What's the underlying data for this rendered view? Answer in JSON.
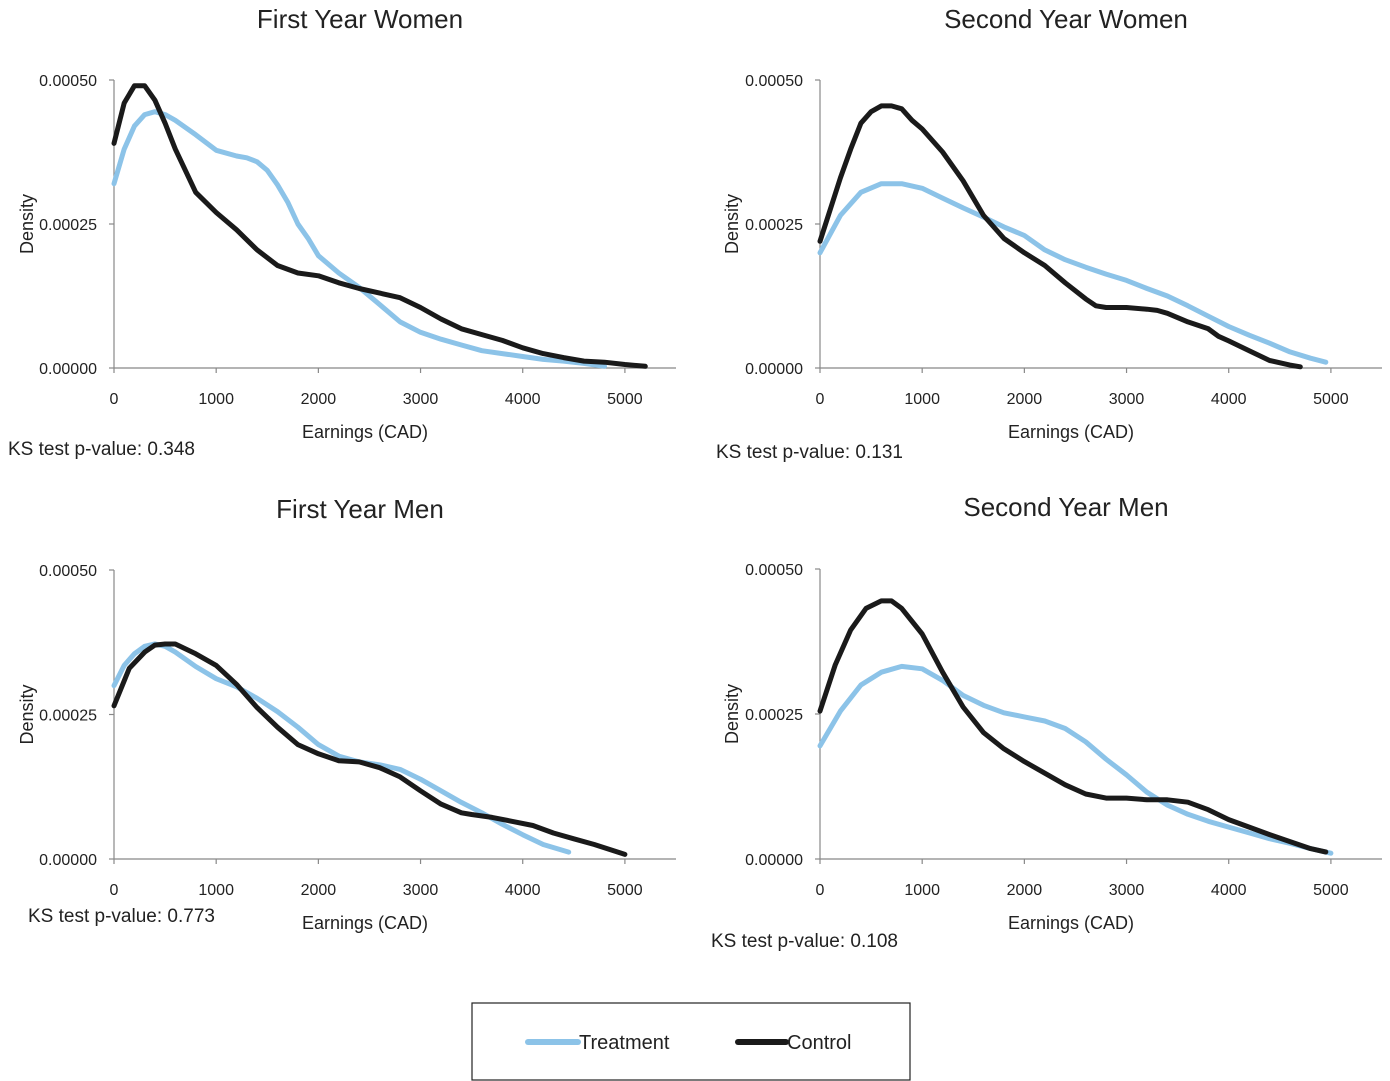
{
  "legend": {
    "treatment_label": "Treatment",
    "control_label": "Control"
  },
  "colors": {
    "treatment": "#8cc3e8",
    "control": "#1a1a1a"
  },
  "chart_data": [
    {
      "type": "line",
      "title": "First Year  Women",
      "xlabel": "Earnings (CAD)",
      "ylabel": "Density",
      "xlim": [
        0,
        5500
      ],
      "ylim": [
        0,
        0.0005
      ],
      "x_ticks": [
        "0",
        "1000",
        "2000",
        "3000",
        "4000",
        "5000"
      ],
      "y_ticks": [
        "0.00000",
        "0.00025",
        "0.00050"
      ],
      "ks_text": "KS test p-value:  0.348",
      "series": [
        {
          "name": "Treatment",
          "x": [
            0,
            100,
            200,
            300,
            400,
            500,
            600,
            800,
            1000,
            1200,
            1300,
            1400,
            1500,
            1600,
            1700,
            1800,
            1900,
            2000,
            2200,
            2400,
            2600,
            2800,
            3000,
            3200,
            3400,
            3600,
            3800,
            4000,
            4200,
            4400,
            4600,
            4800
          ],
          "y": [
            0.00032,
            0.00038,
            0.00042,
            0.00044,
            0.000445,
            0.00044,
            0.00043,
            0.000405,
            0.000378,
            0.000368,
            0.000365,
            0.000358,
            0.000343,
            0.000318,
            0.000288,
            0.00025,
            0.000225,
            0.000195,
            0.000165,
            0.00014,
            0.00011,
            8e-05,
            6.2e-05,
            5e-05,
            4e-05,
            3e-05,
            2.5e-05,
            2e-05,
            1.5e-05,
            1.2e-05,
            8e-06,
            3e-06
          ]
        },
        {
          "name": "Control",
          "x": [
            0,
            100,
            200,
            300,
            400,
            500,
            600,
            800,
            1000,
            1200,
            1400,
            1600,
            1800,
            2000,
            2200,
            2400,
            2600,
            2800,
            3000,
            3200,
            3400,
            3600,
            3800,
            4000,
            4200,
            4400,
            4600,
            4800,
            5000,
            5200
          ],
          "y": [
            0.00039,
            0.00046,
            0.00049,
            0.00049,
            0.000465,
            0.000425,
            0.00038,
            0.000305,
            0.00027,
            0.00024,
            0.000205,
            0.000178,
            0.000165,
            0.00016,
            0.000148,
            0.000138,
            0.00013,
            0.000122,
            0.000105,
            8.5e-05,
            6.8e-05,
            5.8e-05,
            4.8e-05,
            3.5e-05,
            2.5e-05,
            1.8e-05,
            1.2e-05,
            1e-05,
            6e-06,
            3e-06
          ]
        }
      ]
    },
    {
      "type": "line",
      "title": "Second Year  Women",
      "xlabel": "Earnings (CAD)",
      "ylabel": "Density",
      "xlim": [
        0,
        5500
      ],
      "ylim": [
        0,
        0.0005
      ],
      "x_ticks": [
        "0",
        "1000",
        "2000",
        "3000",
        "4000",
        "5000"
      ],
      "y_ticks": [
        "0.00000",
        "0.00025",
        "0.00050"
      ],
      "ks_text": "KS test p-value:  0.131",
      "series": [
        {
          "name": "Treatment",
          "x": [
            0,
            200,
            400,
            600,
            800,
            1000,
            1200,
            1400,
            1600,
            1800,
            2000,
            2200,
            2400,
            2600,
            2800,
            3000,
            3200,
            3400,
            3600,
            3800,
            4000,
            4200,
            4400,
            4600,
            4800,
            4950
          ],
          "y": [
            0.0002,
            0.000265,
            0.000305,
            0.00032,
            0.00032,
            0.000312,
            0.000295,
            0.000278,
            0.000262,
            0.000245,
            0.00023,
            0.000205,
            0.000188,
            0.000175,
            0.000163,
            0.000152,
            0.000138,
            0.000125,
            0.000108,
            9e-05,
            7.2e-05,
            5.7e-05,
            4.3e-05,
            2.8e-05,
            1.7e-05,
            1e-05
          ]
        },
        {
          "name": "Control",
          "x": [
            0,
            100,
            200,
            300,
            400,
            500,
            600,
            700,
            800,
            900,
            1000,
            1200,
            1400,
            1600,
            1800,
            2000,
            2200,
            2400,
            2600,
            2700,
            2800,
            3000,
            3200,
            3300,
            3400,
            3600,
            3800,
            3900,
            4000,
            4200,
            4400,
            4600,
            4700
          ],
          "y": [
            0.00022,
            0.000275,
            0.00033,
            0.00038,
            0.000425,
            0.000445,
            0.000455,
            0.000455,
            0.00045,
            0.00043,
            0.000415,
            0.000375,
            0.000325,
            0.000265,
            0.000225,
            0.0002,
            0.000178,
            0.000148,
            0.00012,
            0.000108,
            0.000105,
            0.000105,
            0.000102,
            0.0001,
            9.5e-05,
            8e-05,
            6.8e-05,
            5.5e-05,
            4.7e-05,
            3e-05,
            1.3e-05,
            5e-06,
            2e-06
          ]
        }
      ]
    },
    {
      "type": "line",
      "title": "First Year  Men",
      "xlabel": "Earnings (CAD)",
      "ylabel": "Density",
      "xlim": [
        0,
        5500
      ],
      "ylim": [
        0,
        0.0005
      ],
      "x_ticks": [
        "0",
        "1000",
        "2000",
        "3000",
        "4000",
        "5000"
      ],
      "y_ticks": [
        "0.00000",
        "0.00025",
        "0.00050"
      ],
      "ks_text": "KS test p-value:  0.773",
      "series": [
        {
          "name": "Treatment",
          "x": [
            0,
            100,
            200,
            300,
            400,
            500,
            600,
            800,
            1000,
            1200,
            1400,
            1600,
            1800,
            2000,
            2200,
            2400,
            2600,
            2800,
            3000,
            3200,
            3400,
            3600,
            3800,
            4000,
            4200,
            4450
          ],
          "y": [
            0.0003,
            0.000335,
            0.000355,
            0.000368,
            0.000372,
            0.000368,
            0.000358,
            0.000333,
            0.000312,
            0.000298,
            0.000278,
            0.000255,
            0.000228,
            0.000198,
            0.000178,
            0.000168,
            0.000163,
            0.000155,
            0.000138,
            0.000118,
            9.8e-05,
            8e-05,
            6e-05,
            4.2e-05,
            2.5e-05,
            1.2e-05
          ]
        },
        {
          "name": "Control",
          "x": [
            0,
            150,
            300,
            400,
            500,
            600,
            800,
            1000,
            1200,
            1400,
            1600,
            1800,
            2000,
            2200,
            2400,
            2600,
            2800,
            3000,
            3200,
            3400,
            3500,
            3700,
            3900,
            4100,
            4300,
            4500,
            4700,
            5000
          ],
          "y": [
            0.000265,
            0.00033,
            0.000358,
            0.00037,
            0.000372,
            0.000372,
            0.000355,
            0.000335,
            0.000302,
            0.000262,
            0.000228,
            0.000198,
            0.000182,
            0.00017,
            0.000168,
            0.000158,
            0.000142,
            0.000118,
            9.5e-05,
            8e-05,
            7.7e-05,
            7.2e-05,
            6.5e-05,
            5.8e-05,
            4.5e-05,
            3.5e-05,
            2.5e-05,
            8e-06
          ]
        }
      ]
    },
    {
      "type": "line",
      "title": "Second Year  Men",
      "xlabel": "Earnings (CAD)",
      "ylabel": "Density",
      "xlim": [
        0,
        5500
      ],
      "ylim": [
        0,
        0.0005
      ],
      "x_ticks": [
        "0",
        "1000",
        "2000",
        "3000",
        "4000",
        "5000"
      ],
      "y_ticks": [
        "0.00000",
        "0.00025",
        "0.00050"
      ],
      "ks_text": "KS test p-value:  0.108",
      "series": [
        {
          "name": "Treatment",
          "x": [
            0,
            200,
            400,
            600,
            800,
            1000,
            1200,
            1400,
            1600,
            1800,
            2000,
            2200,
            2400,
            2600,
            2800,
            3000,
            3200,
            3400,
            3600,
            3800,
            4000,
            4200,
            4400,
            4600,
            4800,
            5000
          ],
          "y": [
            0.000195,
            0.000255,
            0.0003,
            0.000322,
            0.000332,
            0.000328,
            0.000308,
            0.000282,
            0.000265,
            0.000252,
            0.000245,
            0.000238,
            0.000225,
            0.000202,
            0.000172,
            0.000145,
            0.000115,
            9.3e-05,
            7.7e-05,
            6.5e-05,
            5.5e-05,
            4.5e-05,
            3.5e-05,
            2.7e-05,
            1.8e-05,
            1e-05
          ]
        },
        {
          "name": "Control",
          "x": [
            0,
            150,
            300,
            450,
            600,
            700,
            800,
            1000,
            1200,
            1400,
            1600,
            1800,
            2000,
            2200,
            2400,
            2600,
            2800,
            3000,
            3200,
            3400,
            3600,
            3800,
            4000,
            4200,
            4400,
            4600,
            4800,
            4950
          ],
          "y": [
            0.000255,
            0.000335,
            0.000395,
            0.000432,
            0.000445,
            0.000445,
            0.000432,
            0.000388,
            0.000322,
            0.000262,
            0.000218,
            0.00019,
            0.000168,
            0.000148,
            0.000128,
            0.000112,
            0.000105,
            0.000105,
            0.000102,
            0.000102,
            9.8e-05,
            8.5e-05,
            6.8e-05,
            5.5e-05,
            4.2e-05,
            3e-05,
            1.8e-05,
            1.2e-05
          ]
        }
      ]
    }
  ]
}
